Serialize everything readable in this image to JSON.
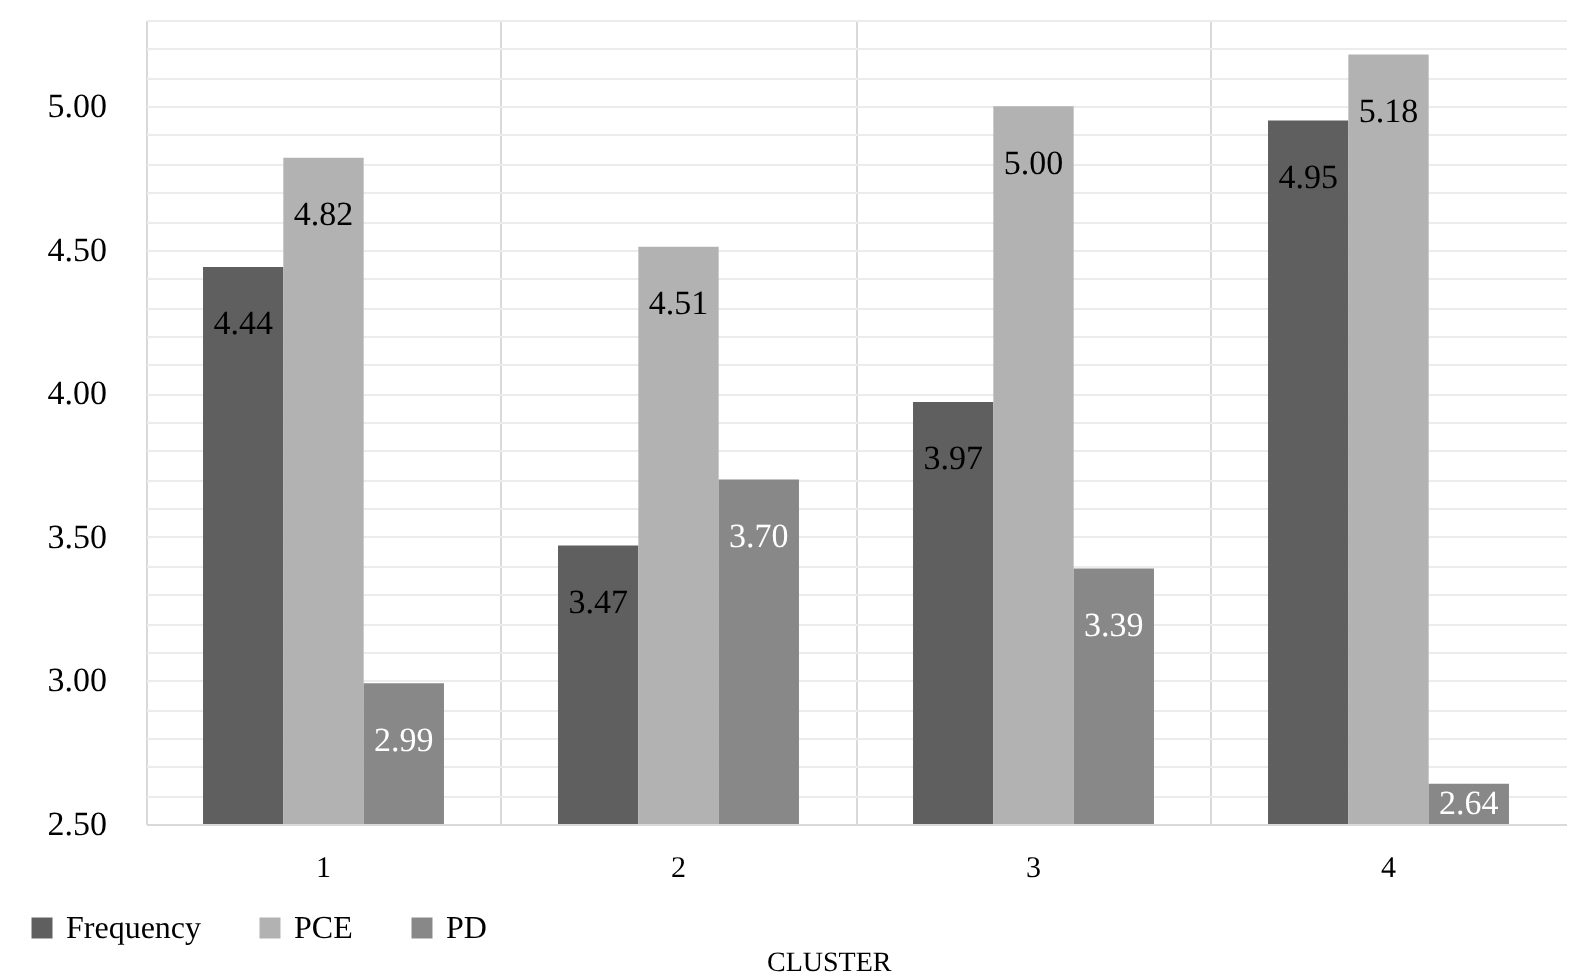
{
  "chart_data": {
    "type": "bar",
    "xlabel": "CLUSTER",
    "categories": [
      "1",
      "2",
      "3",
      "4"
    ],
    "series": [
      {
        "name": "Frequency",
        "color": "#5f5f5f",
        "values": [
          4.44,
          3.47,
          3.97,
          4.95
        ],
        "value_labels": [
          "4.44",
          "3.47",
          "3.97",
          "4.95"
        ]
      },
      {
        "name": "PCE",
        "color": "#b2b2b2",
        "values": [
          4.82,
          4.51,
          5.0,
          5.18
        ],
        "value_labels": [
          "4.82",
          "4.51",
          "5.00",
          "5.18"
        ]
      },
      {
        "name": "PD",
        "color": "#888888",
        "values": [
          2.99,
          3.7,
          3.39,
          2.64
        ],
        "value_labels": [
          "2.99",
          "3.70",
          "3.39",
          "2.64"
        ]
      }
    ],
    "ylim": [
      2.5,
      5.3
    ],
    "yticks": [
      {
        "value": 2.5,
        "label": "2.50"
      },
      {
        "value": 2.6,
        "label": null
      },
      {
        "value": 2.7,
        "label": null
      },
      {
        "value": 2.8,
        "label": null
      },
      {
        "value": 2.9,
        "label": null
      },
      {
        "value": 3.0,
        "label": "3.00"
      },
      {
        "value": 3.1,
        "label": null
      },
      {
        "value": 3.2,
        "label": null
      },
      {
        "value": 3.3,
        "label": null
      },
      {
        "value": 3.4,
        "label": null
      },
      {
        "value": 3.5,
        "label": "3.50"
      },
      {
        "value": 3.6,
        "label": null
      },
      {
        "value": 3.7,
        "label": null
      },
      {
        "value": 3.8,
        "label": null
      },
      {
        "value": 3.9,
        "label": null
      },
      {
        "value": 4.0,
        "label": "4.00"
      },
      {
        "value": 4.1,
        "label": null
      },
      {
        "value": 4.2,
        "label": null
      },
      {
        "value": 4.3,
        "label": null
      },
      {
        "value": 4.4,
        "label": null
      },
      {
        "value": 4.5,
        "label": "4.50"
      },
      {
        "value": 4.6,
        "label": null
      },
      {
        "value": 4.7,
        "label": null
      },
      {
        "value": 4.8,
        "label": null
      },
      {
        "value": 4.9,
        "label": null
      },
      {
        "value": 5.0,
        "label": "5.00"
      },
      {
        "value": 5.1,
        "label": null
      },
      {
        "value": 5.2,
        "label": null
      },
      {
        "value": 5.3,
        "label": null
      }
    ],
    "grid": true,
    "legend": "bottom left"
  }
}
